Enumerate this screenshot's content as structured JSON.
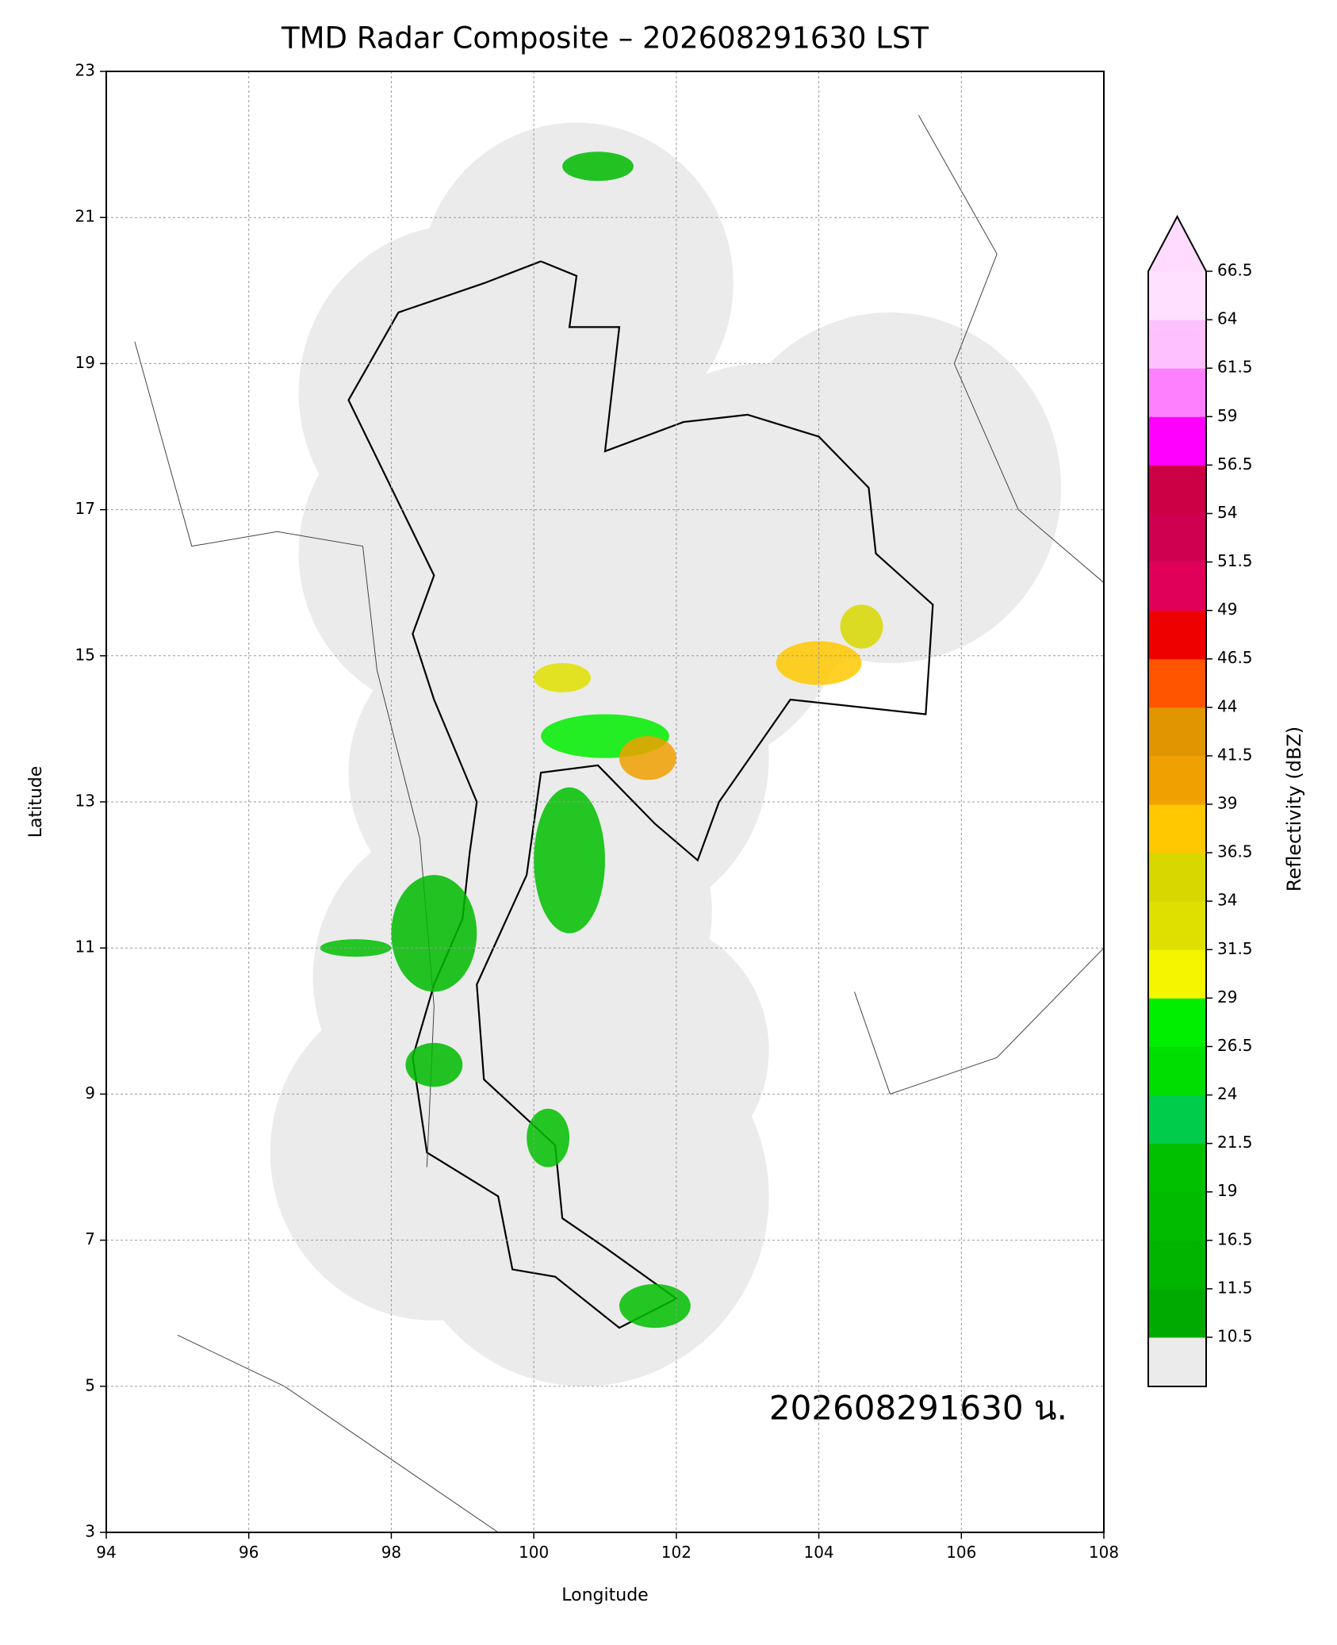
{
  "chart_data": {
    "type": "radar-map",
    "title": "TMD Radar Composite – 202608291630 LST",
    "x_label": "Longitude",
    "y_label": "Latitude",
    "xlim": [
      94,
      108
    ],
    "ylim": [
      3,
      23
    ],
    "xticks": [
      94,
      96,
      98,
      100,
      102,
      104,
      106,
      108
    ],
    "yticks": [
      3,
      5,
      7,
      9,
      11,
      13,
      15,
      17,
      19,
      21,
      23
    ],
    "grid": true,
    "annotation": "202608291630 น.",
    "colorbar": {
      "label": "Reflectivity (dBZ)",
      "ticks": [
        10.5,
        11.5,
        16.5,
        19.0,
        21.5,
        24.0,
        26.5,
        29.0,
        31.5,
        34.0,
        36.5,
        39.0,
        41.5,
        44.0,
        46.5,
        49.0,
        51.5,
        54.0,
        56.5,
        59.0,
        61.5,
        64.0,
        66.5
      ],
      "under_color": "#ebebeb",
      "colors": [
        "#00aa00",
        "#00b400",
        "#00bb00",
        "#00c000",
        "#00cc4c",
        "#00dd00",
        "#00ee00",
        "#f5f500",
        "#e0e000",
        "#d8d800",
        "#ffc800",
        "#f0a000",
        "#e09600",
        "#ff5500",
        "#ee0000",
        "#e0005a",
        "#d00050",
        "#cc0044",
        "#ff00ff",
        "#ff80ff",
        "#ffc0ff",
        "#ffe0ff"
      ],
      "over_color": "#ffdcff"
    }
  }
}
